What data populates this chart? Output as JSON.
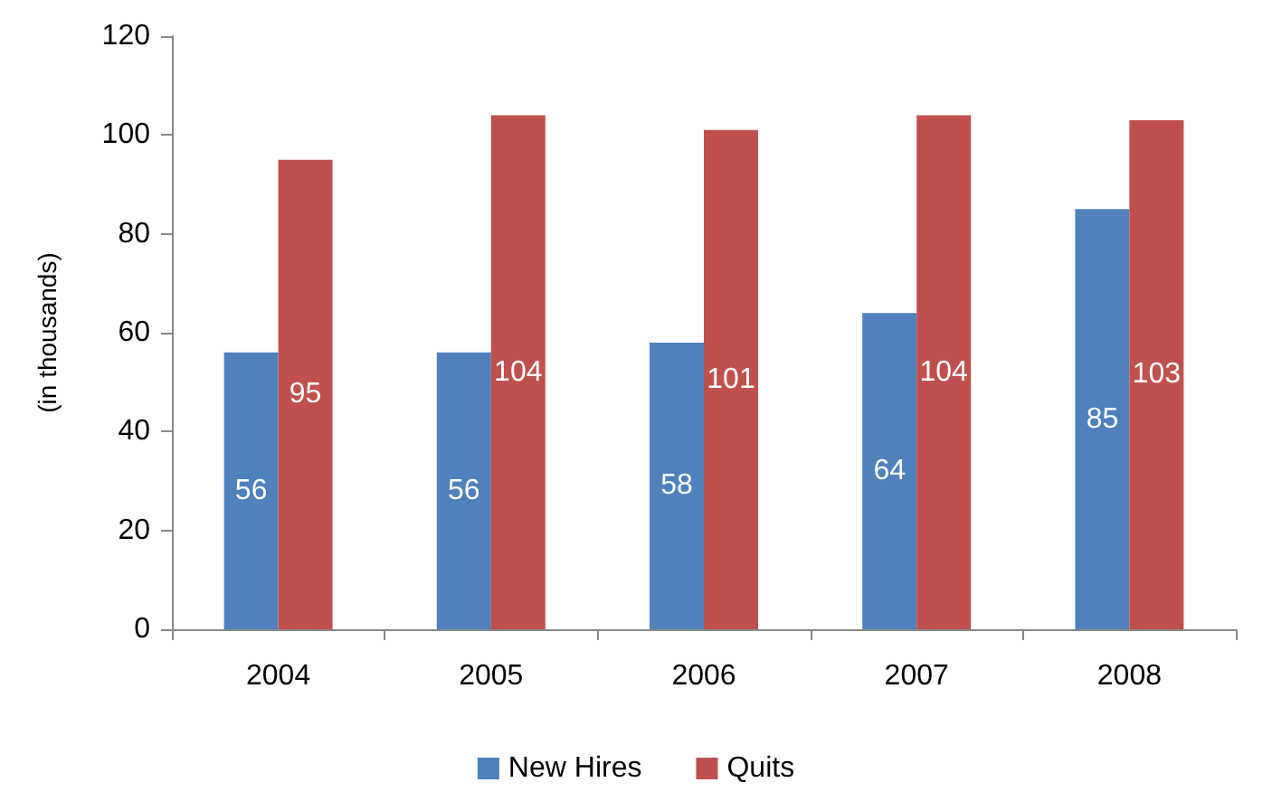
{
  "chart_data": {
    "type": "bar",
    "ylabel": "(in thousands)",
    "categories": [
      "2004",
      "2005",
      "2006",
      "2007",
      "2008"
    ],
    "series": [
      {
        "name": "New Hires",
        "color": "#4f81bd",
        "values": [
          56,
          56,
          58,
          64,
          85
        ]
      },
      {
        "name": "Quits",
        "color": "#c0504d",
        "values": [
          95,
          104,
          101,
          104,
          103
        ]
      }
    ],
    "ylim": [
      0,
      120
    ],
    "yticks": [
      0,
      20,
      40,
      60,
      80,
      100,
      120
    ],
    "grid": false,
    "legend": "bottom",
    "data_labels": true
  }
}
